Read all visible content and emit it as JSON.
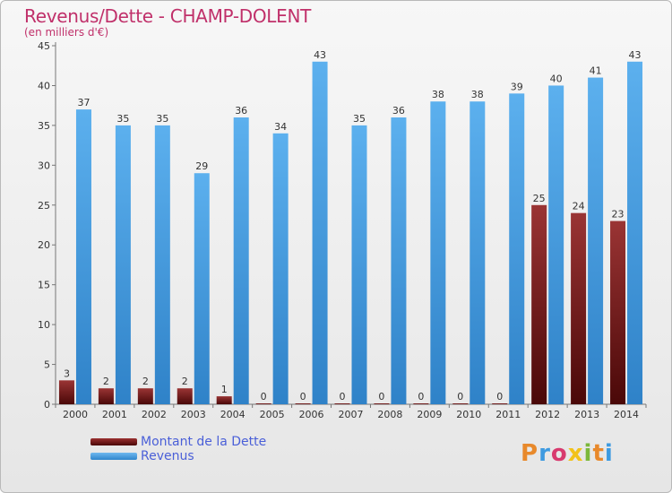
{
  "header": {
    "title": "Revenus/Dette - CHAMP-DOLENT",
    "subtitle": "(en milliers d'€)"
  },
  "legend": {
    "debt_label": "Montant de la Dette",
    "revenue_label": "Revenus"
  },
  "logo": {
    "text": "Proxiti"
  },
  "colors": {
    "title": "#c0306a",
    "debt": "#7a1c1e",
    "revenue": "#3d9ae0",
    "legend_text": "#4a5fd8"
  },
  "chart_data": {
    "type": "bar",
    "title": "Revenus/Dette - CHAMP-DOLENT",
    "subtitle": "(en milliers d'€)",
    "categories": [
      "2000",
      "2001",
      "2002",
      "2003",
      "2004",
      "2005",
      "2006",
      "2007",
      "2008",
      "2009",
      "2010",
      "2011",
      "2012",
      "2013",
      "2014"
    ],
    "series": [
      {
        "name": "Montant de la Dette",
        "values": [
          3,
          2,
          2,
          2,
          1,
          0,
          0,
          0,
          0,
          0,
          0,
          0,
          25,
          24,
          23
        ]
      },
      {
        "name": "Revenus",
        "values": [
          37,
          35,
          35,
          29,
          36,
          34,
          43,
          35,
          36,
          38,
          38,
          39,
          40,
          41,
          43
        ]
      }
    ],
    "ylim": [
      0,
      45
    ],
    "yticks": [
      0,
      5,
      10,
      15,
      20,
      25,
      30,
      35,
      40,
      45
    ],
    "grid": false,
    "legend_position": "bottom-left"
  }
}
